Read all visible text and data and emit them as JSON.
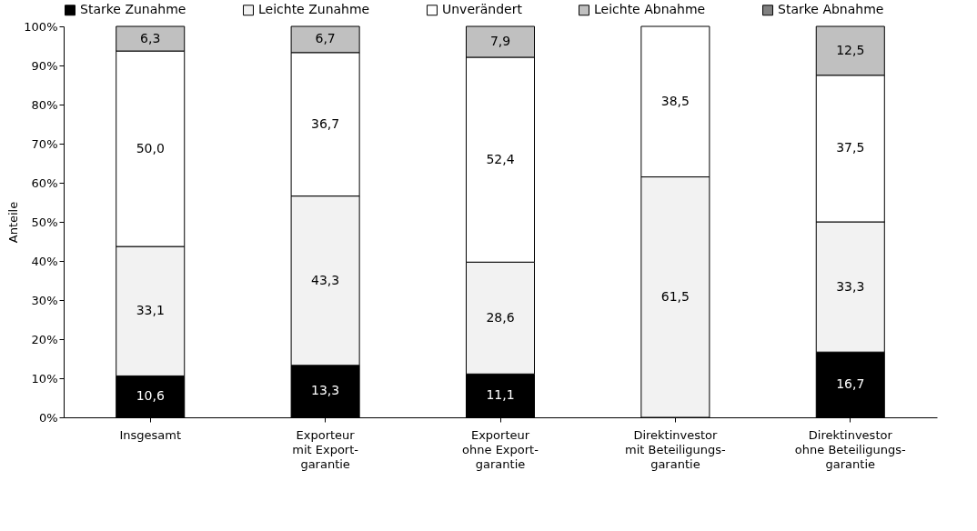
{
  "chart_data": {
    "type": "bar",
    "stacked": true,
    "ylabel": "Anteile",
    "categories": [
      "Insgesamt",
      "Exporteur\nmit Export-\ngarantie",
      "Exporteur\nohne Export-\ngarantie",
      "Direktinvestor\nmit Beteiligungs-\ngarantie",
      "Direktinvestor\nohne Beteiligungs-\ngarantie"
    ],
    "series": [
      {
        "name": "Starke Zunahme",
        "color": "#000000",
        "values": [
          10.6,
          13.3,
          11.1,
          0,
          16.7
        ],
        "value_labels": [
          "10,6",
          "13,3",
          "11,1",
          null,
          "16,7"
        ]
      },
      {
        "name": "Leichte Zunahme",
        "color": "#f2f2f2",
        "values": [
          33.1,
          43.3,
          28.6,
          61.5,
          33.3
        ],
        "value_labels": [
          "33,1",
          "43,3",
          "28,6",
          "61,5",
          "33,3"
        ]
      },
      {
        "name": "Unverändert",
        "color": "#ffffff",
        "values": [
          50.0,
          36.7,
          52.4,
          38.5,
          37.5
        ],
        "value_labels": [
          "50,0",
          "36,7",
          "52,4",
          "38,5",
          "37,5"
        ]
      },
      {
        "name": "Leichte Abnahme",
        "color": "#c0c0c0",
        "values": [
          6.3,
          6.7,
          7.9,
          0,
          12.5
        ],
        "value_labels": [
          "6,3",
          "6,7",
          "7,9",
          null,
          "12,5"
        ]
      },
      {
        "name": "Starke Abnahme",
        "color": "#808080",
        "values": [
          0,
          0,
          0,
          0,
          0
        ],
        "value_labels": [
          null,
          null,
          null,
          null,
          null
        ]
      }
    ],
    "ylim": [
      0,
      100
    ],
    "yticks": [
      {
        "value": 0,
        "label": "0%"
      },
      {
        "value": 10,
        "label": "10%"
      },
      {
        "value": 20,
        "label": "20%"
      },
      {
        "value": 30,
        "label": "30%"
      },
      {
        "value": 40,
        "label": "40%"
      },
      {
        "value": 50,
        "label": "50%"
      },
      {
        "value": 60,
        "label": "60%"
      },
      {
        "value": 70,
        "label": "70%"
      },
      {
        "value": 80,
        "label": "80%"
      },
      {
        "value": 90,
        "label": "90%"
      },
      {
        "value": 100,
        "label": "100%"
      }
    ],
    "grid": false,
    "legend": "top"
  }
}
